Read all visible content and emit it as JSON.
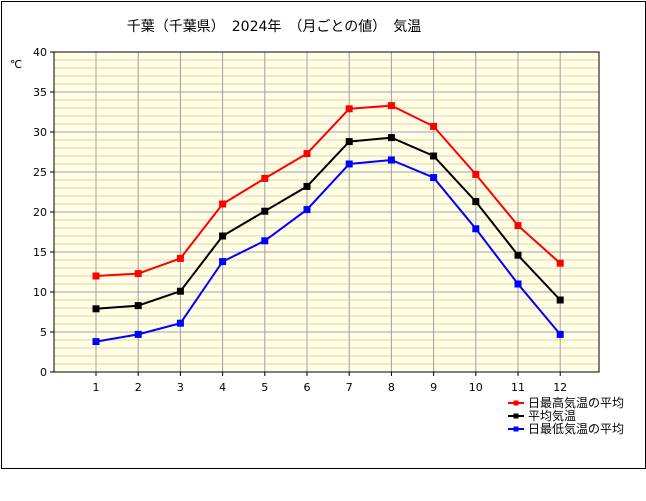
{
  "chart_data": {
    "type": "line",
    "title": "千葉（千葉県）　2024年　（月ごとの値）　気温",
    "ylabel": "℃",
    "xlabel": "",
    "ylim": [
      0,
      40
    ],
    "yticks": [
      0,
      5,
      10,
      15,
      20,
      25,
      30,
      35,
      40
    ],
    "categories": [
      "1",
      "2",
      "3",
      "4",
      "5",
      "6",
      "7",
      "8",
      "9",
      "10",
      "11",
      "12"
    ],
    "grid": "on",
    "legend_position": "bottom-right",
    "series": [
      {
        "name": "日最高気温の平均",
        "color": "#ff0000",
        "values": [
          12.0,
          12.3,
          14.2,
          21.0,
          24.2,
          27.3,
          32.9,
          33.3,
          30.7,
          24.7,
          18.3,
          13.6
        ]
      },
      {
        "name": "平均気温",
        "color": "#000000",
        "values": [
          7.9,
          8.3,
          10.1,
          17.0,
          20.1,
          23.2,
          28.8,
          29.3,
          27.0,
          21.3,
          14.6,
          9.0
        ]
      },
      {
        "name": "日最低気温の平均",
        "color": "#0000ff",
        "values": [
          3.8,
          4.7,
          6.1,
          13.8,
          16.4,
          20.3,
          26.0,
          26.5,
          24.3,
          17.9,
          11.0,
          4.7
        ]
      }
    ]
  },
  "colors": {
    "plot_background": "#ffffe7",
    "minor_grid": "#e8cfa0",
    "major_grid": "#a0a0a0"
  }
}
